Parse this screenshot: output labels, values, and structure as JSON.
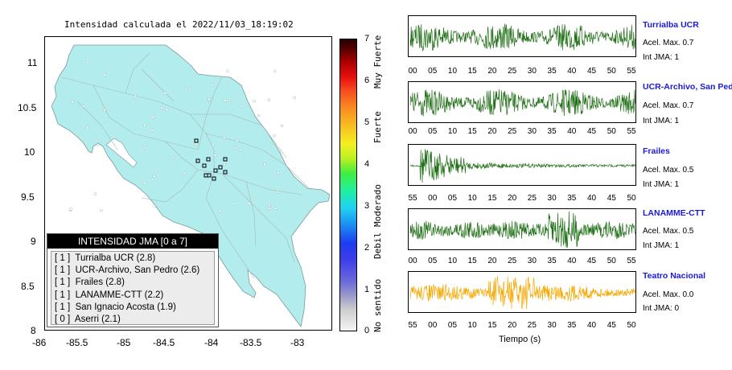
{
  "map": {
    "title": "Intensidad calculada el 2022/11/03_18:19:02",
    "x_ticks": [
      "-86",
      "-85.5",
      "-85",
      "-84.5",
      "-84",
      "-83.5",
      "-83"
    ],
    "y_ticks": [
      "11",
      "10.5",
      "10",
      "9.5",
      "9",
      "8.5",
      "8"
    ]
  },
  "legend": {
    "title": "INTENSIDAD JMA [0 a 7]",
    "items": [
      "[ 1 ]  Turrialba UCR (2.8)",
      "[ 1 ]  UCR-Archivo, San Pedro (2.6)",
      "[ 1 ]  Frailes (2.8)",
      "[ 1 ]  LANAMME-CTT (2.2)",
      "[ 1 ]  San Ignacio Acosta (1.9)",
      "[ 0 ]  Aserri (2.1)"
    ]
  },
  "colorbar": {
    "ticks": [
      "0",
      "1",
      "2",
      "3",
      "4",
      "5",
      "6",
      "7"
    ],
    "words": [
      "No sentido",
      "Debil",
      "Moderado",
      "Fuerte",
      "Muy Fuerte"
    ]
  },
  "traces": [
    {
      "name": "Turrialba UCR",
      "acel": "Acel. Max. 0.7",
      "jma": "Int JMA: 1",
      "color": "#1e6e14",
      "ticks": [
        "00",
        "05",
        "10",
        "15",
        "20",
        "25",
        "30",
        "35",
        "40",
        "45",
        "50",
        "55"
      ],
      "envelope": "flat"
    },
    {
      "name": "UCR-Archivo, San Pedro",
      "acel": "Acel. Max. 0.7",
      "jma": "Int JMA: 1",
      "color": "#1e6e14",
      "ticks": [
        "00",
        "05",
        "10",
        "15",
        "20",
        "25",
        "30",
        "35",
        "40",
        "45",
        "50",
        "55"
      ],
      "envelope": "flat"
    },
    {
      "name": "Frailes",
      "acel": "Acel. Max. 0.5",
      "jma": "Int JMA: 1",
      "color": "#1e6e14",
      "ticks": [
        "55",
        "00",
        "05",
        "10",
        "15",
        "20",
        "25",
        "30",
        "35",
        "40",
        "45",
        "50"
      ],
      "envelope": "decay"
    },
    {
      "name": "LANAMME-CTT",
      "acel": "Acel. Max. 0.5",
      "jma": "Int JMA: 1",
      "color": "#1e6e14",
      "ticks": [
        "00",
        "05",
        "10",
        "15",
        "20",
        "25",
        "30",
        "35",
        "40",
        "45",
        "50",
        "55"
      ],
      "envelope": "burst"
    },
    {
      "name": "Teatro Nacional",
      "acel": "Acel. Max. 0.0",
      "jma": "Int JMA: 0",
      "color": "#f5a800",
      "ticks": [
        "55",
        "00",
        "05",
        "10",
        "15",
        "20",
        "25",
        "30",
        "35",
        "40",
        "45",
        "50"
      ],
      "envelope": "mid"
    }
  ],
  "xlabel": "Tiempo (s)"
}
